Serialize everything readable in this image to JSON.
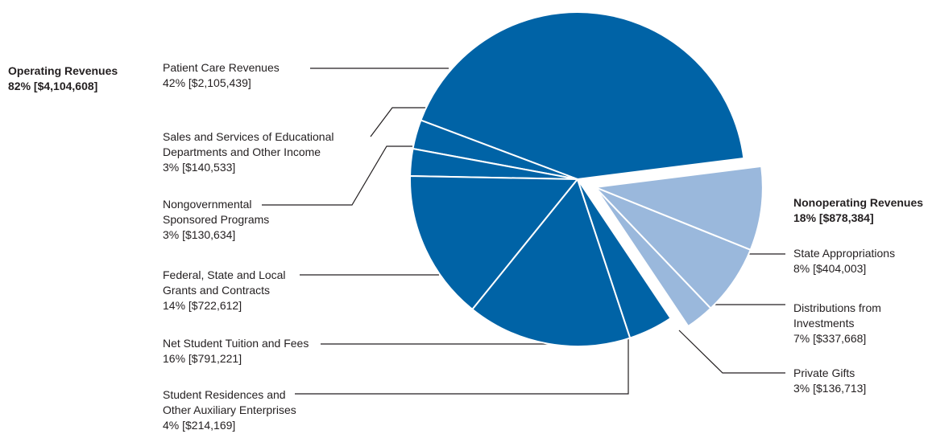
{
  "colors": {
    "operating": "#0063a6",
    "nonoperating": "#9ab8dc",
    "leader": "#231f20",
    "separator": "#ffffff"
  },
  "chart_data": {
    "type": "pie",
    "groups": [
      {
        "name": "Operating Revenues",
        "summary": "82%  [$4,104,608]",
        "percent": 82,
        "amount": 4104608
      },
      {
        "name": "Nonoperating Revenues",
        "summary": "18%  [$878,384]",
        "percent": 18,
        "amount": 878384
      }
    ],
    "slices": [
      {
        "lines": [
          "Patient Care Revenues"
        ],
        "value_text": "42%  [$2,105,439]",
        "percent": 42,
        "amount": 2105439,
        "group": "operating"
      },
      {
        "lines": [
          "Sales and Services of Educational",
          "Departments and Other Income"
        ],
        "value_text": "3%  [$140,533]",
        "percent": 3,
        "amount": 140533,
        "group": "operating"
      },
      {
        "lines": [
          "Nongovernmental",
          "Sponsored Programs"
        ],
        "value_text": "3%  [$130,634]",
        "percent": 3,
        "amount": 130634,
        "group": "operating"
      },
      {
        "lines": [
          "Federal, State and Local",
          "Grants and Contracts"
        ],
        "value_text": "14%  [$722,612]",
        "percent": 14,
        "amount": 722612,
        "group": "operating"
      },
      {
        "lines": [
          "Net Student Tuition and Fees"
        ],
        "value_text": "16%  [$791,221]",
        "percent": 16,
        "amount": 791221,
        "group": "operating"
      },
      {
        "lines": [
          "Student Residences and",
          "Other Auxiliary Enterprises"
        ],
        "value_text": "4%  [$214,169]",
        "percent": 4,
        "amount": 214169,
        "group": "operating"
      },
      {
        "lines": [
          "Private Gifts"
        ],
        "value_text": "3%  [$136,713]",
        "percent": 3,
        "amount": 136713,
        "group": "nonoperating"
      },
      {
        "lines": [
          "Distributions from",
          "Investments"
        ],
        "value_text": "7%  [$337,668]",
        "percent": 7,
        "amount": 337668,
        "group": "nonoperating"
      },
      {
        "lines": [
          "State Appropriations"
        ],
        "value_text": "8%  [$404,003]",
        "percent": 8,
        "amount": 404003,
        "group": "nonoperating"
      }
    ]
  }
}
